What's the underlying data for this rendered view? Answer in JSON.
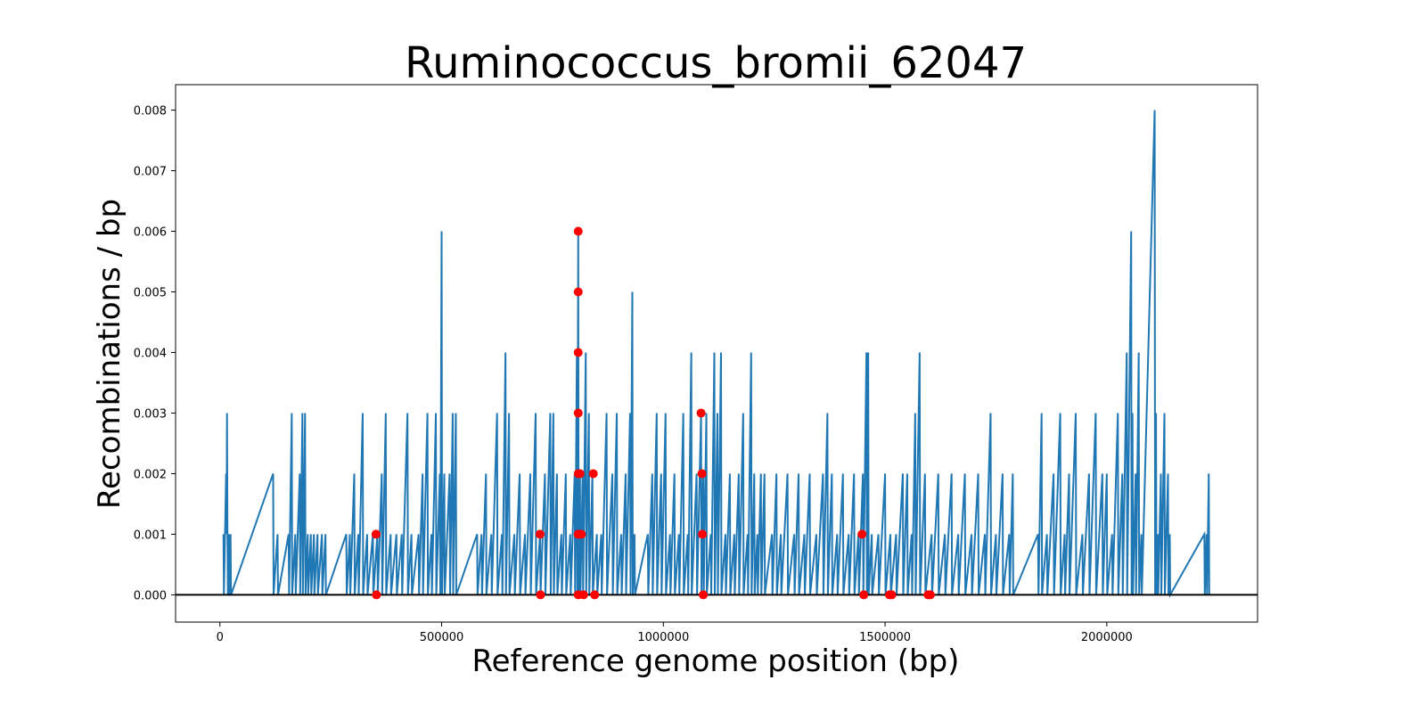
{
  "chart_data": {
    "type": "line",
    "title": "Ruminococcus_bromii_62047",
    "xlabel": "Reference genome position (bp)",
    "ylabel": "Recombinations / bp",
    "xlim": [
      -100000,
      2340000
    ],
    "ylim": [
      -0.00045,
      0.00842
    ],
    "xticks": [
      0,
      500000,
      1000000,
      1500000,
      2000000
    ],
    "yticks": [
      0.0,
      0.001,
      0.002,
      0.003,
      0.004,
      0.005,
      0.006,
      0.007,
      0.008
    ],
    "xtick_labels": [
      "0",
      "500000",
      "1000000",
      "1500000",
      "2000000"
    ],
    "ytick_labels": [
      "0.000",
      "0.001",
      "0.002",
      "0.003",
      "0.004",
      "0.005",
      "0.006",
      "0.007",
      "0.008"
    ],
    "zero_line": true,
    "grid": false,
    "colors": {
      "line": "#1f77b4",
      "markers": "#ff0000",
      "zero_line": "#000000"
    },
    "series": [
      {
        "type": "line",
        "x": [
          8000,
          9000,
          14000,
          15000,
          16000,
          17000,
          18000,
          20000,
          21000,
          24000,
          25000,
          120000,
          121000,
          130000,
          131000,
          155000,
          156000,
          162000,
          163000,
          170000,
          171000,
          180000,
          181000,
          186000,
          187000,
          192000,
          193000,
          198000,
          199000,
          205000,
          206000,
          212000,
          213000,
          220000,
          221000,
          230000,
          231000,
          238000,
          239000,
          285000,
          286000,
          293000,
          294000,
          303000,
          304000,
          312000,
          313000,
          322000,
          323000,
          332000,
          333000,
          345000,
          346000,
          355000,
          356000,
          365000,
          366000,
          374000,
          375000,
          385000,
          386000,
          398000,
          399000,
          410000,
          411000,
          423000,
          424000,
          432000,
          433000,
          448000,
          449000,
          457000,
          458000,
          468000,
          469000,
          477000,
          478000,
          487000,
          488000,
          496000,
          497000,
          500000,
          501000,
          506000,
          507000,
          518000,
          519000,
          525000,
          526000,
          532000,
          533000,
          580000,
          581000,
          590000,
          591000,
          600000,
          601000,
          612000,
          613000,
          625000,
          626000,
          636000,
          637000,
          644000,
          645000,
          652000,
          653000,
          664000,
          665000,
          676000,
          677000,
          688000,
          689000,
          700000,
          701000,
          712000,
          713000,
          722000,
          723000,
          733000,
          734000,
          745000,
          746000,
          752000,
          753000,
          760000,
          761000,
          770000,
          771000,
          780000,
          781000,
          790000,
          791000,
          800000,
          801000,
          805000,
          806000,
          808000,
          809000,
          812000,
          813000,
          818000,
          819000,
          825000,
          826000,
          832000,
          833000,
          840000,
          841000,
          850000,
          851000,
          860000,
          861000,
          872000,
          873000,
          885000,
          886000,
          895000,
          896000,
          905000,
          906000,
          915000,
          916000,
          925000,
          926000,
          930000,
          931000,
          935000,
          936000,
          965000,
          966000,
          975000,
          976000,
          985000,
          986000,
          995000,
          996000,
          1005000,
          1006000,
          1015000,
          1016000,
          1025000,
          1026000,
          1035000,
          1036000,
          1045000,
          1046000,
          1055000,
          1056000,
          1063000,
          1064000,
          1075000,
          1076000,
          1085000,
          1086000,
          1090000,
          1091000,
          1097000,
          1098000,
          1107000,
          1108000,
          1115000,
          1116000,
          1122000,
          1123000,
          1130000,
          1131000,
          1140000,
          1141000,
          1150000,
          1151000,
          1160000,
          1161000,
          1170000,
          1171000,
          1180000,
          1181000,
          1190000,
          1191000,
          1198000,
          1199000,
          1205000,
          1206000,
          1212000,
          1213000,
          1220000,
          1221000,
          1228000,
          1229000,
          1245000,
          1246000,
          1255000,
          1256000,
          1265000,
          1266000,
          1280000,
          1281000,
          1295000,
          1296000,
          1305000,
          1306000,
          1318000,
          1319000,
          1330000,
          1331000,
          1345000,
          1346000,
          1360000,
          1361000,
          1370000,
          1371000,
          1380000,
          1381000,
          1392000,
          1393000,
          1405000,
          1406000,
          1418000,
          1419000,
          1430000,
          1431000,
          1440000,
          1441000,
          1450000,
          1451000,
          1458000,
          1459000,
          1462000,
          1463000,
          1470000,
          1471000,
          1485000,
          1486000,
          1500000,
          1501000,
          1512000,
          1513000,
          1525000,
          1526000,
          1540000,
          1541000,
          1550000,
          1551000,
          1560000,
          1561000,
          1568000,
          1569000,
          1578000,
          1579000,
          1590000,
          1591000,
          1605000,
          1606000,
          1620000,
          1621000,
          1635000,
          1636000,
          1650000,
          1651000,
          1665000,
          1666000,
          1680000,
          1681000,
          1695000,
          1696000,
          1710000,
          1711000,
          1725000,
          1726000,
          1738000,
          1739000,
          1750000,
          1751000,
          1765000,
          1766000,
          1780000,
          1781000,
          1788000,
          1789000,
          1845000,
          1846000,
          1853000,
          1854000,
          1865000,
          1866000,
          1880000,
          1881000,
          1895000,
          1896000,
          1905000,
          1906000,
          1915000,
          1916000,
          1930000,
          1931000,
          1945000,
          1946000,
          1960000,
          1961000,
          1975000,
          1976000,
          1990000,
          1991000,
          2000000,
          2001000,
          2012000,
          2013000,
          2025000,
          2026000,
          2035000,
          2036000,
          2045000,
          2046000,
          2055000,
          2056000,
          2058000,
          2059000,
          2065000,
          2066000,
          2072000,
          2073000,
          2078000,
          2079000,
          2108000,
          2109000,
          2111000,
          2112000,
          2115000,
          2116000,
          2122000,
          2123000,
          2130000,
          2131000,
          2138000,
          2139000,
          2142000,
          2143000,
          2220000,
          2221000,
          2225000,
          2226000,
          2230000,
          2231000
        ],
        "y": [
          0.001,
          0.0,
          0.002,
          0.001,
          0.003,
          0.001,
          0.0,
          0.001,
          0.0,
          0.001,
          0.0,
          0.002,
          0.0,
          0.001,
          0.0,
          0.001,
          0.0,
          0.003,
          0.0,
          0.001,
          0.0,
          0.002,
          0.0,
          0.003,
          0.0,
          0.003,
          0.0,
          0.001,
          0.0,
          0.001,
          0.0,
          0.001,
          0.0,
          0.001,
          0.0,
          0.001,
          0.0,
          0.001,
          0.0,
          0.001,
          0.0,
          0.001,
          0.0,
          0.002,
          0.0,
          0.001,
          0.0,
          0.003,
          0.0,
          0.001,
          0.0,
          0.001,
          0.0,
          0.001,
          0.0,
          0.002,
          0.0,
          0.003,
          0.0,
          0.001,
          0.0,
          0.001,
          0.0,
          0.001,
          0.0,
          0.003,
          0.0,
          0.001,
          0.0,
          0.001,
          0.0,
          0.002,
          0.0,
          0.003,
          0.0,
          0.001,
          0.0,
          0.003,
          0.0,
          0.002,
          0.0,
          0.006,
          0.0,
          0.002,
          0.0,
          0.002,
          0.0,
          0.003,
          0.0,
          0.003,
          0.0,
          0.001,
          0.0,
          0.001,
          0.0,
          0.002,
          0.0,
          0.001,
          0.0,
          0.003,
          0.0,
          0.001,
          0.0,
          0.004,
          0.0,
          0.003,
          0.0,
          0.001,
          0.0,
          0.002,
          0.0,
          0.001,
          0.0,
          0.002,
          0.0,
          0.003,
          0.0,
          0.001,
          0.0,
          0.002,
          0.0,
          0.003,
          0.0,
          0.003,
          0.0,
          0.002,
          0.0,
          0.001,
          0.0,
          0.002,
          0.0,
          0.001,
          0.0,
          0.002,
          0.0,
          0.004,
          0.0,
          0.006,
          0.0,
          0.002,
          0.0,
          0.002,
          0.0,
          0.004,
          0.0,
          0.003,
          0.0,
          0.002,
          0.0,
          0.001,
          0.0,
          0.001,
          0.0,
          0.003,
          0.0,
          0.002,
          0.0,
          0.003,
          0.0,
          0.001,
          0.0,
          0.002,
          0.0,
          0.003,
          0.0,
          0.005,
          0.0,
          0.001,
          0.0,
          0.001,
          0.0,
          0.002,
          0.0,
          0.003,
          0.0,
          0.002,
          0.0,
          0.003,
          0.0,
          0.001,
          0.0,
          0.002,
          0.0,
          0.001,
          0.0,
          0.003,
          0.0,
          0.001,
          0.0,
          0.004,
          0.0,
          0.002,
          0.0,
          0.003,
          0.0,
          0.002,
          0.0,
          0.003,
          0.0,
          0.001,
          0.0,
          0.004,
          0.0,
          0.003,
          0.0,
          0.004,
          0.0,
          0.001,
          0.0,
          0.002,
          0.0,
          0.001,
          0.0,
          0.002,
          0.0,
          0.003,
          0.0,
          0.001,
          0.0,
          0.004,
          0.0,
          0.002,
          0.0,
          0.001,
          0.0,
          0.002,
          0.0,
          0.002,
          0.0,
          0.001,
          0.0,
          0.002,
          0.0,
          0.001,
          0.0,
          0.002,
          0.0,
          0.001,
          0.0,
          0.002,
          0.0,
          0.001,
          0.0,
          0.002,
          0.0,
          0.001,
          0.0,
          0.002,
          0.0,
          0.003,
          0.0,
          0.002,
          0.0,
          0.001,
          0.0,
          0.002,
          0.0,
          0.001,
          0.0,
          0.002,
          0.0,
          0.001,
          0.0,
          0.002,
          0.0,
          0.004,
          0.0,
          0.004,
          0.0,
          0.001,
          0.0,
          0.001,
          0.0,
          0.002,
          0.0,
          0.001,
          0.0,
          0.001,
          0.0,
          0.002,
          0.0,
          0.002,
          0.0,
          0.001,
          0.0,
          0.003,
          0.0,
          0.004,
          0.0,
          0.002,
          0.0,
          0.001,
          0.0,
          0.002,
          0.0,
          0.001,
          0.0,
          0.002,
          0.0,
          0.001,
          0.0,
          0.002,
          0.0,
          0.001,
          0.0,
          0.002,
          0.0,
          0.001,
          0.0,
          0.003,
          0.0,
          0.001,
          0.0,
          0.002,
          0.0,
          0.001,
          0.0,
          0.002,
          0.0,
          0.001,
          0.0,
          0.003,
          0.0,
          0.001,
          0.0,
          0.002,
          0.0,
          0.003,
          0.0,
          0.001,
          0.0,
          0.002,
          0.0,
          0.003,
          0.0,
          0.001,
          0.0,
          0.002,
          0.0,
          0.003,
          0.0,
          0.002,
          0.0,
          0.002,
          0.0,
          0.001,
          0.0,
          0.003,
          0.0,
          0.002,
          0.0,
          0.004,
          0.0,
          0.006,
          0.0,
          0.003,
          0.0,
          0.002,
          0.0,
          0.004,
          0.0,
          0.001,
          0.0,
          0.008,
          0.0,
          0.003,
          0.0,
          0.001,
          0.0,
          0.002,
          0.0,
          0.003,
          0.0,
          0.002,
          0.0,
          0.001,
          0.0,
          0.001,
          0.0,
          0.001,
          0.0,
          0.002,
          0.0
        ]
      },
      {
        "type": "scatter",
        "x": [
          352000,
          353000,
          722000,
          723000,
          808000,
          808000,
          808000,
          808000,
          808000,
          808000,
          808000,
          812000,
          815000,
          820000,
          842000,
          845000,
          1085000,
          1087000,
          1088000,
          1090000,
          1448000,
          1452000,
          1510000,
          1515000,
          1597000,
          1602000
        ],
        "y": [
          0.001,
          0.0,
          0.001,
          0.0,
          0.006,
          0.005,
          0.004,
          0.003,
          0.002,
          0.001,
          0.0,
          0.002,
          0.001,
          0.0,
          0.002,
          0.0,
          0.003,
          0.002,
          0.001,
          0.0,
          0.001,
          0.0,
          0.0,
          0.0,
          0.0,
          0.0
        ]
      }
    ]
  }
}
